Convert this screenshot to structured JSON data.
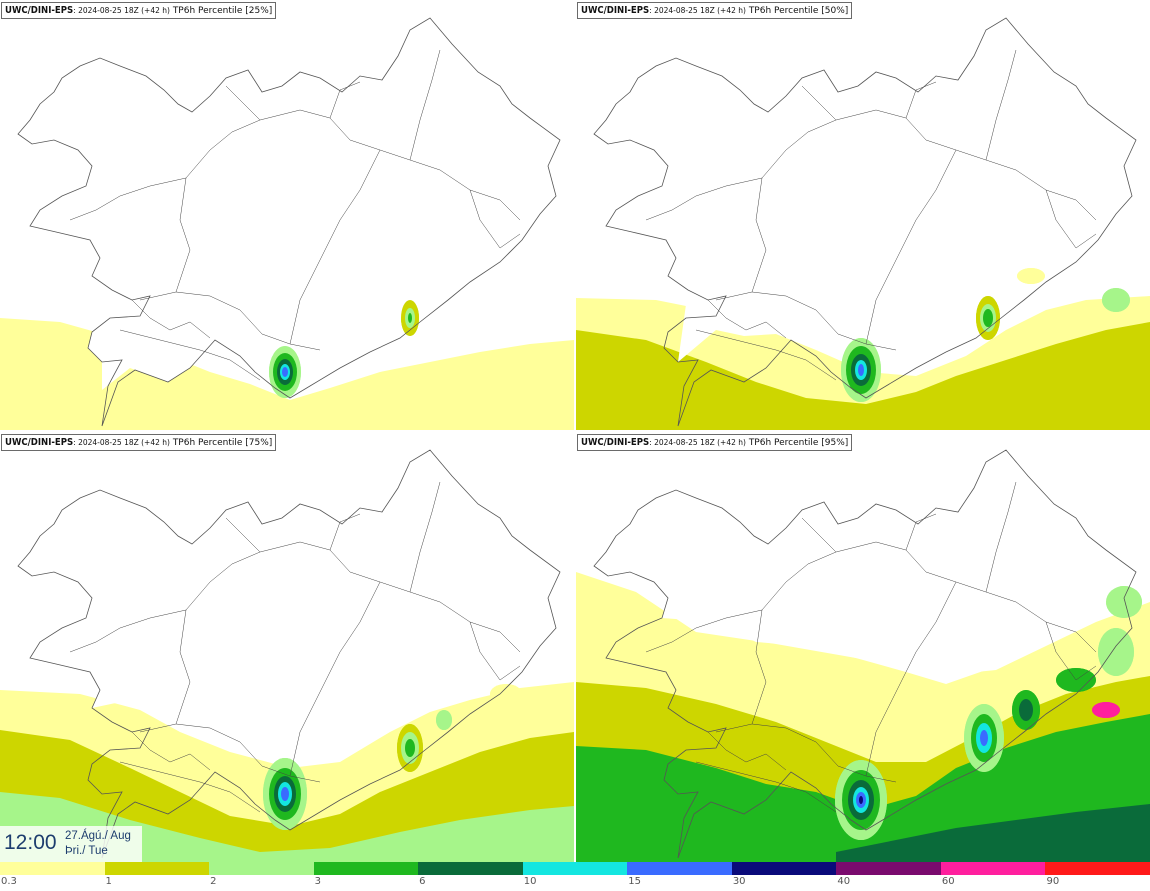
{
  "panels": [
    {
      "source": "UWC/DINI-EPS",
      "run": ": 2024-08-25 18Z (+42 h)",
      "field": " TP6h Percentile [25%]",
      "level": 0
    },
    {
      "source": "UWC/DINI-EPS",
      "run": ": 2024-08-25 18Z (+42 h)",
      "field": " TP6h Percentile [50%]",
      "level": 1
    },
    {
      "source": "UWC/DINI-EPS",
      "run": ": 2024-08-25 18Z (+42 h)",
      "field": " TP6h Percentile [75%]",
      "level": 2
    },
    {
      "source": "UWC/DINI-EPS",
      "run": ": 2024-08-25 18Z (+42 h)",
      "field": " TP6h Percentile [95%]",
      "level": 3
    }
  ],
  "valid_time": {
    "time": "12:00",
    "date_line1": "27.Ágú./ Aug",
    "date_line2": "Þri./ Tue"
  },
  "colorbar": {
    "labels": [
      "0.3",
      "1",
      "2",
      "3",
      "6",
      "10",
      "15",
      "30",
      "40",
      "60",
      "90"
    ],
    "colors": [
      "#ffff9a",
      "#cdd600",
      "#a6f58a",
      "#1fb81f",
      "#0a6b3a",
      "#14e6e0",
      "#3a6bff",
      "#0a0a7a",
      "#7a0a6e",
      "#ff1f9e",
      "#ff1a1a"
    ]
  },
  "map_colors": {
    "land": "#ffffff",
    "coast": "#555555",
    "roads": "#444444"
  }
}
